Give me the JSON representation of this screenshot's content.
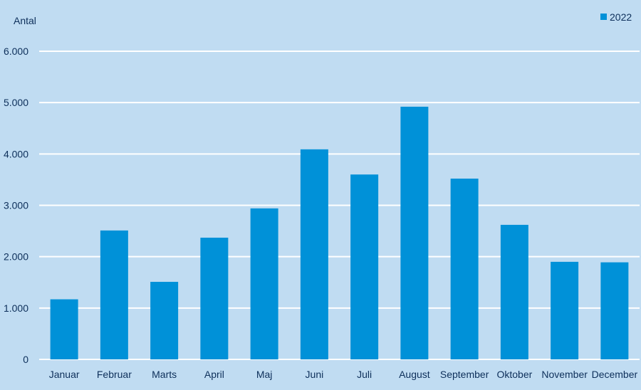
{
  "chart_data": {
    "type": "bar",
    "ylabel": "Antal",
    "legend": {
      "position": "top-right"
    },
    "grid": true,
    "ylim": [
      0,
      6000
    ],
    "yticks": [
      0,
      1000,
      2000,
      3000,
      4000,
      5000,
      6000
    ],
    "ytick_labels": [
      "0",
      "1.000",
      "2.000",
      "3.000",
      "4.000",
      "5.000",
      "6.000"
    ],
    "categories": [
      "Januar",
      "Februar",
      "Marts",
      "April",
      "Maj",
      "Juni",
      "Juli",
      "August",
      "September",
      "Oktober",
      "November",
      "December"
    ],
    "series": [
      {
        "name": "2022",
        "color": "#0091d8",
        "values": [
          1170,
          2510,
          1510,
          2370,
          2940,
          4090,
          3600,
          4920,
          3520,
          2620,
          1900,
          1890
        ]
      }
    ]
  }
}
